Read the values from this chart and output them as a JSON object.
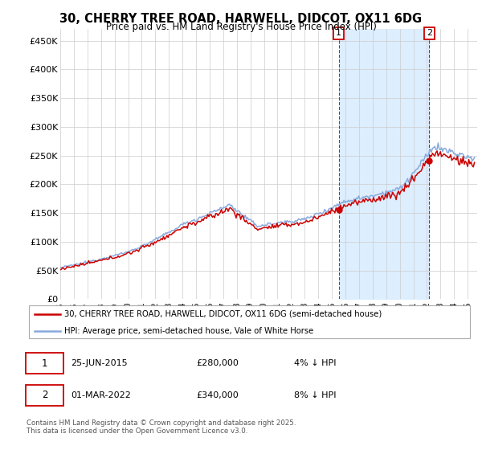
{
  "title": "30, CHERRY TREE ROAD, HARWELL, DIDCOT, OX11 6DG",
  "subtitle": "Price paid vs. HM Land Registry's House Price Index (HPI)",
  "legend_line1": "30, CHERRY TREE ROAD, HARWELL, DIDCOT, OX11 6DG (semi-detached house)",
  "legend_line2": "HPI: Average price, semi-detached house, Vale of White Horse",
  "annotation1_date": "25-JUN-2015",
  "annotation1_price": "£280,000",
  "annotation1_note": "4% ↓ HPI",
  "annotation2_date": "01-MAR-2022",
  "annotation2_price": "£340,000",
  "annotation2_note": "8% ↓ HPI",
  "footer": "Contains HM Land Registry data © Crown copyright and database right 2025.\nThis data is licensed under the Open Government Licence v3.0.",
  "line_color_property": "#cc0000",
  "line_color_hpi": "#88aadd",
  "shade_color": "#ddeeff",
  "vline_color": "#cc0000",
  "annotation_box_color": "#cc0000",
  "ylim": [
    0,
    470000
  ],
  "yticks": [
    0,
    50000,
    100000,
    150000,
    200000,
    250000,
    300000,
    350000,
    400000,
    450000
  ],
  "ytick_labels": [
    "£0",
    "£50K",
    "£100K",
    "£150K",
    "£200K",
    "£250K",
    "£300K",
    "£350K",
    "£400K",
    "£450K"
  ],
  "purchase1_year": 2015.5,
  "purchase1_value": 280000,
  "purchase2_year": 2022.17,
  "purchase2_value": 340000,
  "grid_color": "#cccccc",
  "background_color": "#ffffff"
}
